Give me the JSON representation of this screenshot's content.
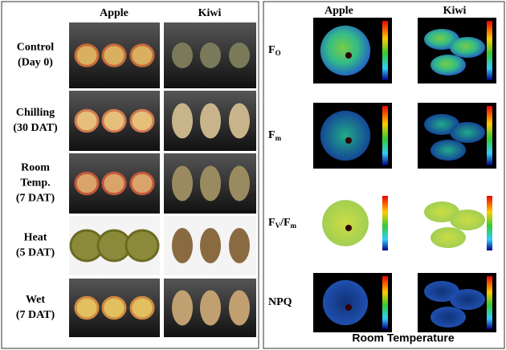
{
  "left": {
    "columns": [
      "Apple",
      "Kiwi"
    ],
    "rows": [
      [
        "Control",
        "(Day 0)"
      ],
      [
        "Chilling",
        "(30 DAT)"
      ],
      [
        "Room",
        "Temp.",
        "(7 DAT)"
      ],
      [
        "Heat",
        "(5 DAT)"
      ],
      [
        "Wet",
        "(7 DAT)"
      ]
    ]
  },
  "right": {
    "columns": [
      "Apple",
      "Kiwi"
    ],
    "rows": [
      [
        {
          "text": "F"
        },
        {
          "text": "O",
          "sub": true
        }
      ],
      [
        {
          "text": "F"
        },
        {
          "text": "m",
          "sub": true
        }
      ],
      [
        {
          "text": "F"
        },
        {
          "text": "V",
          "sub": true
        },
        {
          "text": "/F"
        },
        {
          "text": "m",
          "sub": true
        }
      ],
      [
        {
          "text": "NPQ"
        }
      ]
    ],
    "footer": "Room Temperature"
  }
}
